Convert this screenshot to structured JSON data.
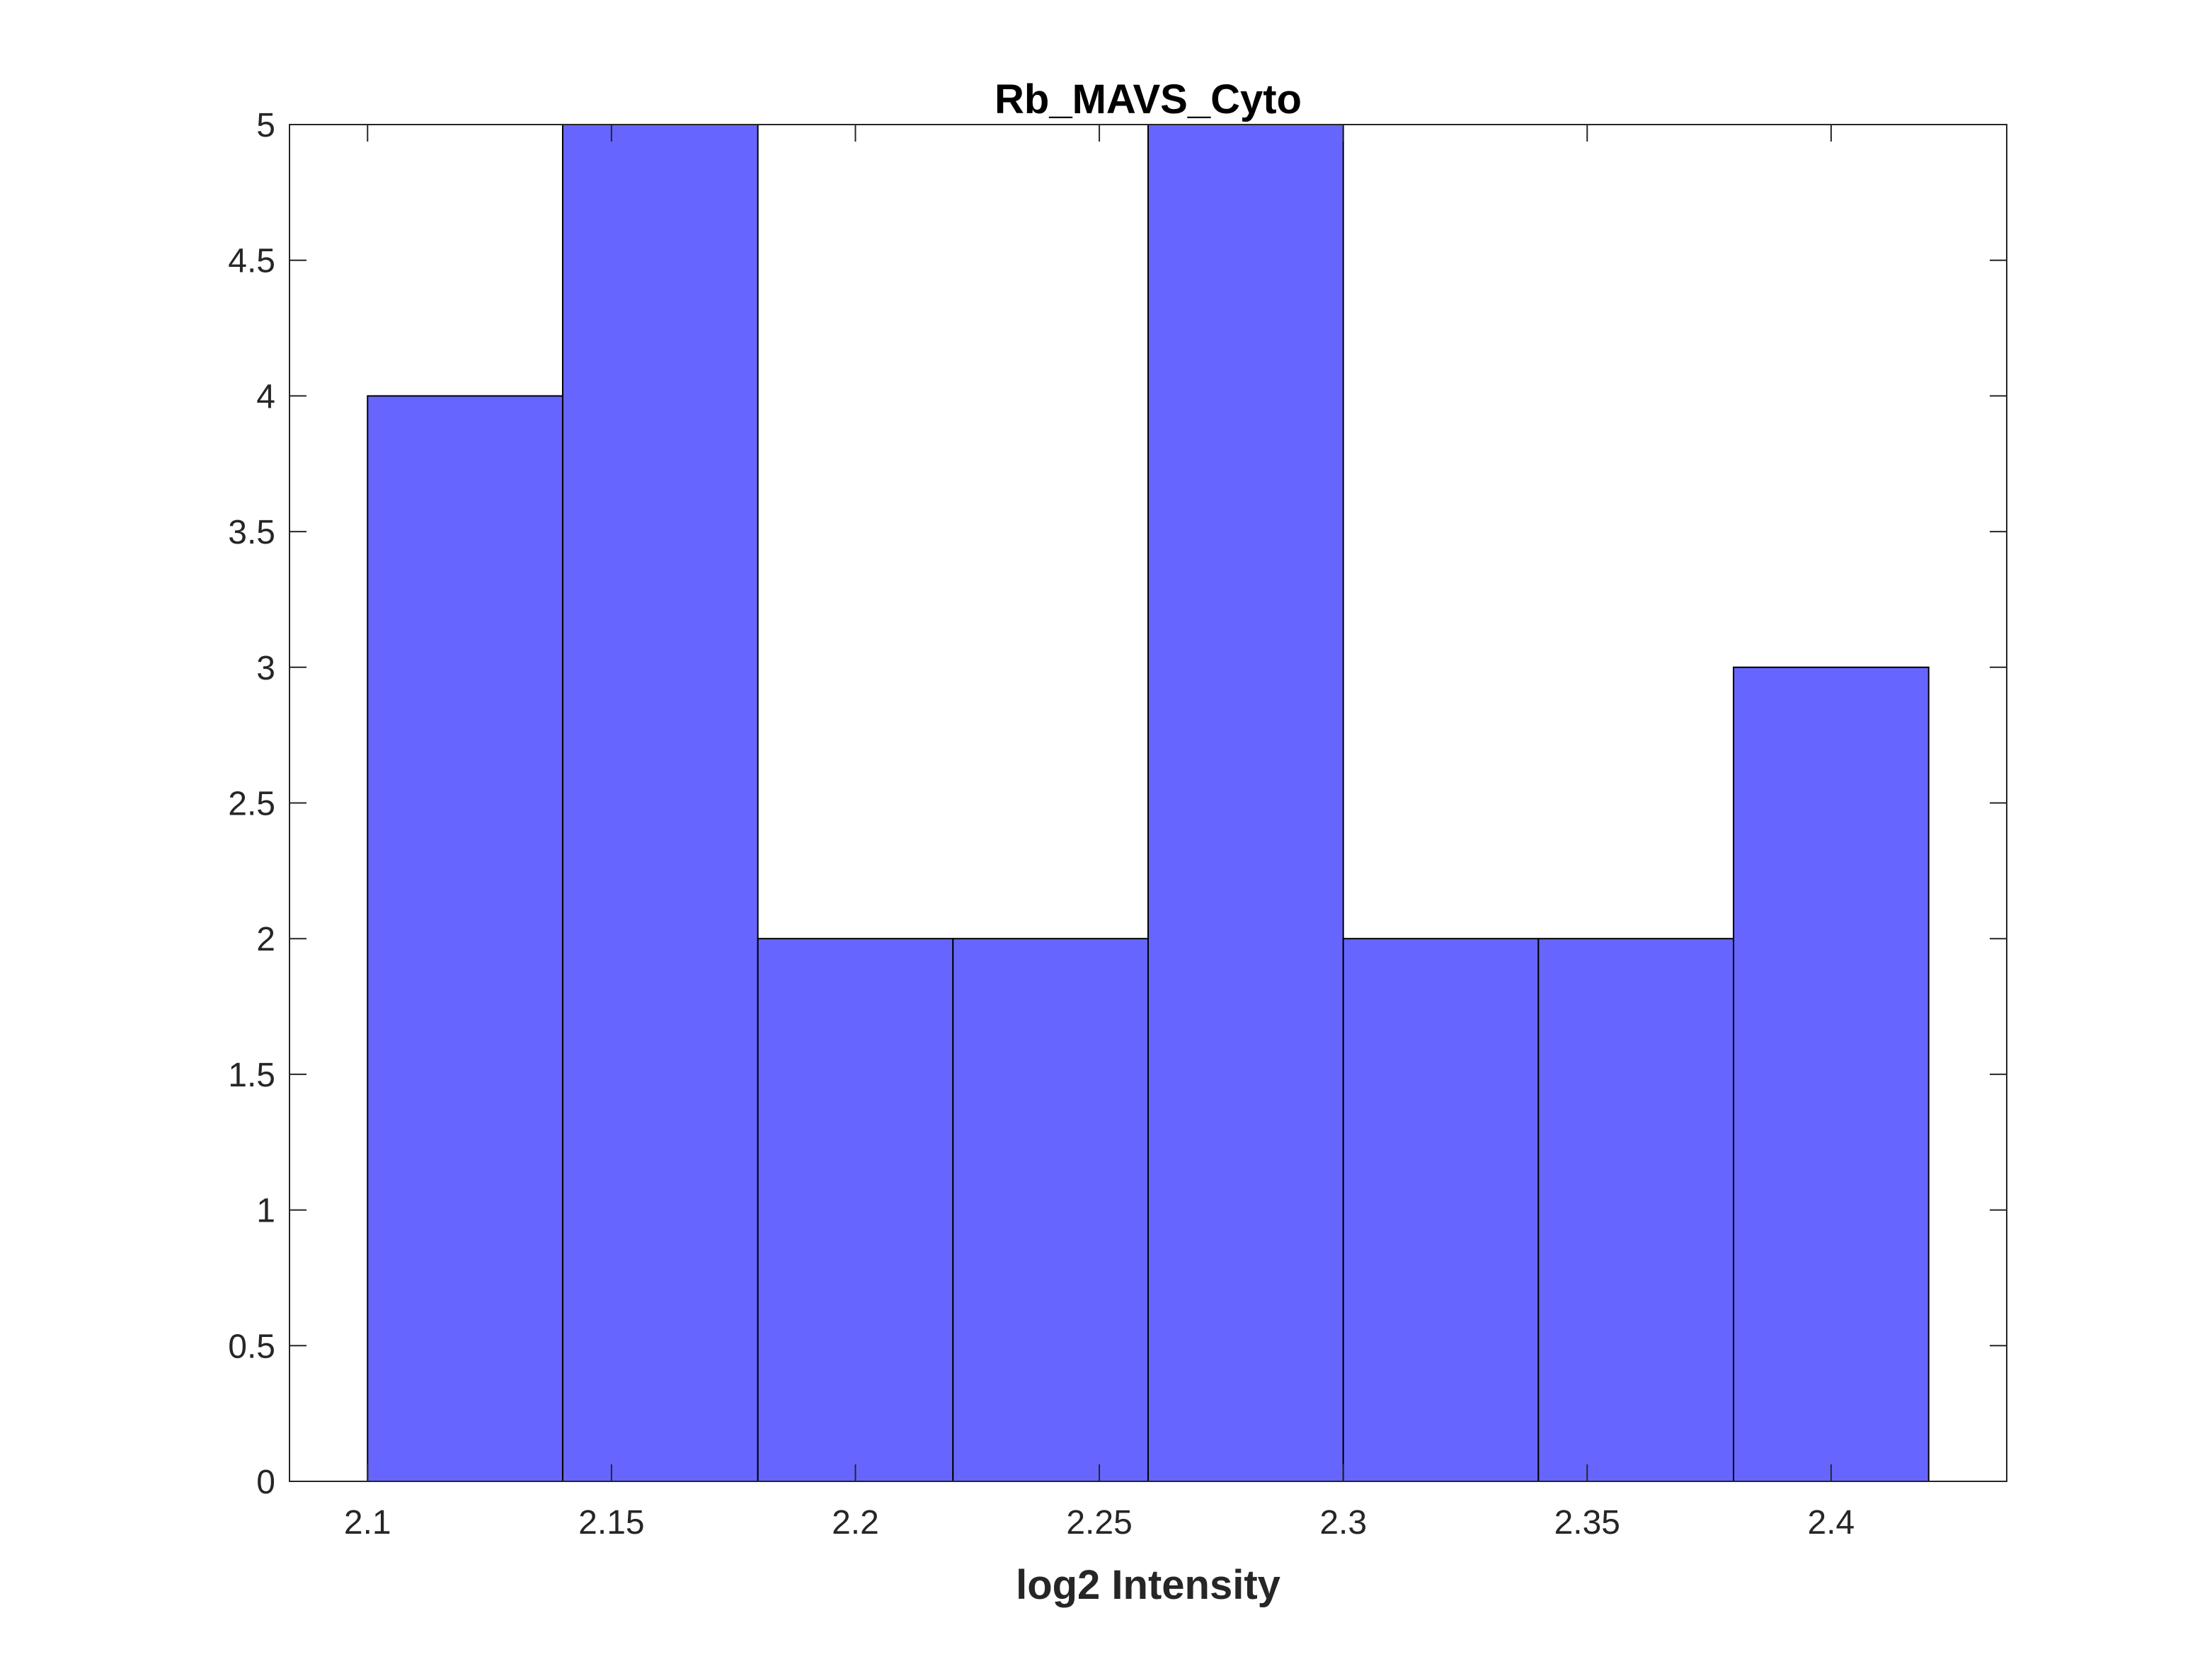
{
  "chart_data": {
    "type": "bar",
    "title": "Rb_MAVS_Cyto",
    "xlabel": "log2 Intensity",
    "ylabel": "",
    "bin_edges": [
      2.1,
      2.14,
      2.18,
      2.22,
      2.26,
      2.3,
      2.34,
      2.38,
      2.42
    ],
    "values": [
      4,
      5,
      2,
      2,
      5,
      2,
      2,
      3
    ],
    "xlim": [
      2.084,
      2.436
    ],
    "ylim": [
      0,
      5
    ],
    "xticks": [
      2.1,
      2.15,
      2.2,
      2.25,
      2.3,
      2.35,
      2.4
    ],
    "xtick_labels": [
      "2.1",
      "2.15",
      "2.2",
      "2.25",
      "2.3",
      "2.35",
      "2.4"
    ],
    "yticks": [
      0,
      0.5,
      1,
      1.5,
      2,
      2.5,
      3,
      3.5,
      4,
      4.5,
      5
    ],
    "ytick_labels": [
      "0",
      "0.5",
      "1",
      "1.5",
      "2",
      "2.5",
      "3",
      "3.5",
      "4",
      "4.5",
      "5"
    ],
    "grid": false,
    "bar_color": "#6666ff",
    "edge_color": "#000000"
  }
}
